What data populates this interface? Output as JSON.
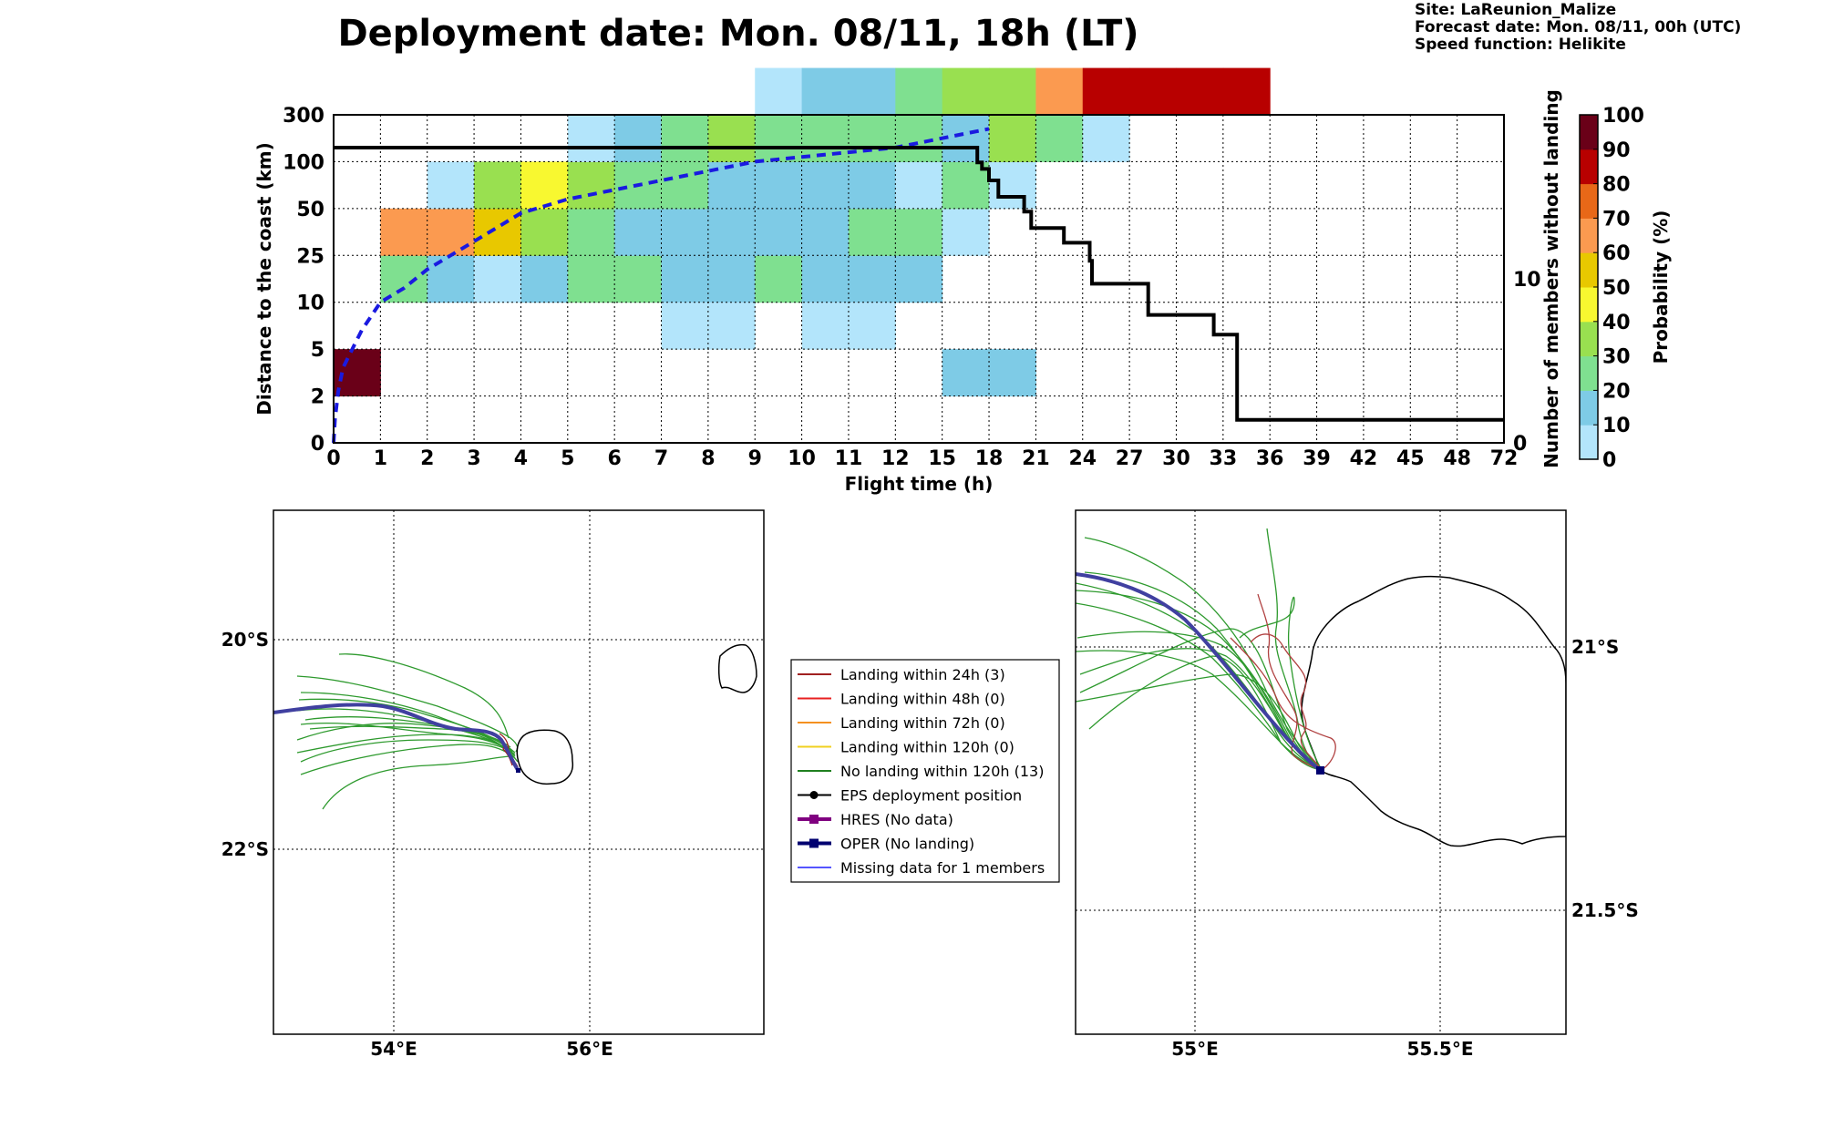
{
  "page": {
    "title": "Deployment date: Mon. 08/11, 18h (LT)",
    "site": "Site: LaReunion_Malize",
    "forecast_date": "Forecast date: Mon. 08/11, 00h (UTC)",
    "speed_function": "Speed function: Helikite"
  },
  "chart_data": [
    {
      "type": "heatmap",
      "xlabel": "Flight time (h)",
      "ylabel": "Distance to the coast (km)",
      "y2label": "Number of members without landing",
      "x_ticks": [
        "0",
        "1",
        "2",
        "3",
        "4",
        "5",
        "6",
        "7",
        "8",
        "9",
        "10",
        "11",
        "12",
        "15",
        "18",
        "21",
        "24",
        "27",
        "30",
        "33",
        "36",
        "39",
        "42",
        "45",
        "48",
        "72"
      ],
      "y_ticks": [
        "0",
        "2",
        "5",
        "10",
        "25",
        "50",
        "100",
        "300"
      ],
      "y2_ticks": [
        "0",
        "10"
      ],
      "y2lim": [
        0,
        20
      ],
      "grid": true,
      "cells": [
        {
          "x": 0,
          "y": 1,
          "p": 95
        },
        {
          "x": 1,
          "y": 3,
          "p": 25
        },
        {
          "x": 2,
          "y": 3,
          "p": 15
        },
        {
          "x": 3,
          "y": 3,
          "p": 5
        },
        {
          "x": 4,
          "y": 3,
          "p": 15
        },
        {
          "x": 5,
          "y": 3,
          "p": 25
        },
        {
          "x": 6,
          "y": 3,
          "p": 25
        },
        {
          "x": 7,
          "y": 3,
          "p": 15
        },
        {
          "x": 8,
          "y": 3,
          "p": 15
        },
        {
          "x": 9,
          "y": 3,
          "p": 25
        },
        {
          "x": 10,
          "y": 3,
          "p": 15
        },
        {
          "x": 11,
          "y": 3,
          "p": 15
        },
        {
          "x": 12,
          "y": 3,
          "p": 15
        },
        {
          "x": 1,
          "y": 4,
          "p": 65
        },
        {
          "x": 2,
          "y": 4,
          "p": 65
        },
        {
          "x": 3,
          "y": 4,
          "p": 55
        },
        {
          "x": 4,
          "y": 4,
          "p": 35
        },
        {
          "x": 5,
          "y": 4,
          "p": 25
        },
        {
          "x": 6,
          "y": 4,
          "p": 15
        },
        {
          "x": 7,
          "y": 4,
          "p": 15
        },
        {
          "x": 8,
          "y": 4,
          "p": 15
        },
        {
          "x": 9,
          "y": 4,
          "p": 15
        },
        {
          "x": 10,
          "y": 4,
          "p": 15
        },
        {
          "x": 11,
          "y": 4,
          "p": 25
        },
        {
          "x": 12,
          "y": 4,
          "p": 25
        },
        {
          "x": 13,
          "y": 4,
          "p": 5
        },
        {
          "x": 2,
          "y": 5,
          "p": 5
        },
        {
          "x": 3,
          "y": 5,
          "p": 35
        },
        {
          "x": 4,
          "y": 5,
          "p": 45
        },
        {
          "x": 5,
          "y": 5,
          "p": 35
        },
        {
          "x": 6,
          "y": 5,
          "p": 25
        },
        {
          "x": 7,
          "y": 5,
          "p": 25
        },
        {
          "x": 8,
          "y": 5,
          "p": 15
        },
        {
          "x": 9,
          "y": 5,
          "p": 15
        },
        {
          "x": 10,
          "y": 5,
          "p": 15
        },
        {
          "x": 11,
          "y": 5,
          "p": 15
        },
        {
          "x": 12,
          "y": 5,
          "p": 5
        },
        {
          "x": 13,
          "y": 5,
          "p": 25
        },
        {
          "x": 14,
          "y": 5,
          "p": 5
        },
        {
          "x": 5,
          "y": 6,
          "p": 5
        },
        {
          "x": 6,
          "y": 6,
          "p": 15
        },
        {
          "x": 7,
          "y": 6,
          "p": 25
        },
        {
          "x": 8,
          "y": 6,
          "p": 35
        },
        {
          "x": 9,
          "y": 6,
          "p": 25
        },
        {
          "x": 10,
          "y": 6,
          "p": 25
        },
        {
          "x": 11,
          "y": 6,
          "p": 25
        },
        {
          "x": 12,
          "y": 6,
          "p": 25
        },
        {
          "x": 13,
          "y": 6,
          "p": 15
        },
        {
          "x": 14,
          "y": 6,
          "p": 35
        },
        {
          "x": 15,
          "y": 6,
          "p": 25
        },
        {
          "x": 16,
          "y": 6,
          "p": 5
        },
        {
          "x": 9,
          "y": 7,
          "p": 5
        },
        {
          "x": 10,
          "y": 7,
          "p": 15
        },
        {
          "x": 11,
          "y": 7,
          "p": 15
        },
        {
          "x": 12,
          "y": 7,
          "p": 25
        },
        {
          "x": 13,
          "y": 7,
          "p": 35
        },
        {
          "x": 14,
          "y": 7,
          "p": 35
        },
        {
          "x": 15,
          "y": 7,
          "p": 65
        },
        {
          "x": 16,
          "y": 7,
          "p": 85
        },
        {
          "x": 17,
          "y": 7,
          "p": 85
        },
        {
          "x": 18,
          "y": 7,
          "p": 85
        },
        {
          "x": 19,
          "y": 7,
          "p": 85
        },
        {
          "x": 7,
          "y": 2,
          "p": 5
        },
        {
          "x": 8,
          "y": 2,
          "p": 5
        },
        {
          "x": 10,
          "y": 2,
          "p": 5
        },
        {
          "x": 11,
          "y": 2,
          "p": 5
        },
        {
          "x": 13,
          "y": 1,
          "p": 15
        },
        {
          "x": 14,
          "y": 1,
          "p": 15
        }
      ],
      "mean_distance_line": {
        "x_idx": [
          0,
          0.03,
          0.1,
          0.2,
          0.4,
          0.6,
          1,
          1.5,
          2,
          3,
          4,
          5,
          6,
          7,
          8,
          9,
          10,
          11,
          12,
          13,
          14
        ],
        "y_idx": [
          0,
          0.5,
          1.1,
          1.6,
          2.0,
          2.4,
          3.0,
          3.3,
          3.7,
          4.3,
          4.9,
          5.2,
          5.4,
          5.6,
          5.8,
          6.0,
          6.1,
          6.2,
          6.3,
          6.5,
          6.7
        ]
      },
      "members_without_landing": {
        "x_idx": [
          0,
          13.75,
          13.75,
          13.85,
          13.85,
          14.0,
          14.0,
          14.2,
          14.2,
          14.75,
          14.75,
          14.9,
          14.9,
          15.6,
          15.6,
          16.15,
          16.15,
          16.2,
          16.2,
          17.4,
          17.4,
          18.8,
          18.8,
          19.3,
          19.3,
          25
        ],
        "members": [
          18,
          18,
          17.1,
          17.1,
          16.7,
          16.7,
          16,
          16,
          15,
          15,
          14.1,
          14.1,
          13.1,
          13.1,
          12.2,
          12.2,
          11.1,
          11.1,
          9.7,
          9.7,
          7.8,
          7.8,
          6.6,
          6.6,
          1.4,
          1.4
        ]
      }
    },
    {
      "type": "colorbar",
      "label": "Probability (%)",
      "ticks": [
        "0",
        "10",
        "20",
        "30",
        "40",
        "50",
        "60",
        "70",
        "80",
        "90",
        "100"
      ],
      "colors": [
        "#b3e5fb",
        "#7ecbe6",
        "#7fe090",
        "#99e050",
        "#f8f830",
        "#e8c800",
        "#fb9a50",
        "#e86818",
        "#b80000",
        "#6a0018"
      ]
    }
  ],
  "maps": [
    {
      "name": "overview",
      "lon_ticks": [
        "54°E",
        "56°E"
      ],
      "lat_ticks": [
        "20°S",
        "22°S"
      ]
    },
    {
      "name": "zoom",
      "lon_ticks": [
        "55°E",
        "55.5°E"
      ],
      "lat_ticks": [
        "21°S",
        "21.5°S"
      ]
    }
  ],
  "legend": {
    "items": [
      {
        "label": "Landing within 24h (3)",
        "color": "#a02020",
        "marker": "none"
      },
      {
        "label": "Landing within 48h (0)",
        "color": "#e82020",
        "marker": "none"
      },
      {
        "label": "Landing within 72h (0)",
        "color": "#f49020",
        "marker": "none"
      },
      {
        "label": "Landing within 120h (0)",
        "color": "#f0d020",
        "marker": "none"
      },
      {
        "label": "No landing within 120h (13)",
        "color": "#208020",
        "marker": "none"
      },
      {
        "label": "EPS deployment position",
        "color": "#000000",
        "marker": "dot"
      },
      {
        "label": "HRES (No data)",
        "color": "#800080",
        "marker": "square"
      },
      {
        "label": "OPER (No landing)",
        "color": "#000070",
        "marker": "square"
      },
      {
        "label": "Missing data for 1 members",
        "color": "#5555ff",
        "marker": "none"
      }
    ]
  }
}
